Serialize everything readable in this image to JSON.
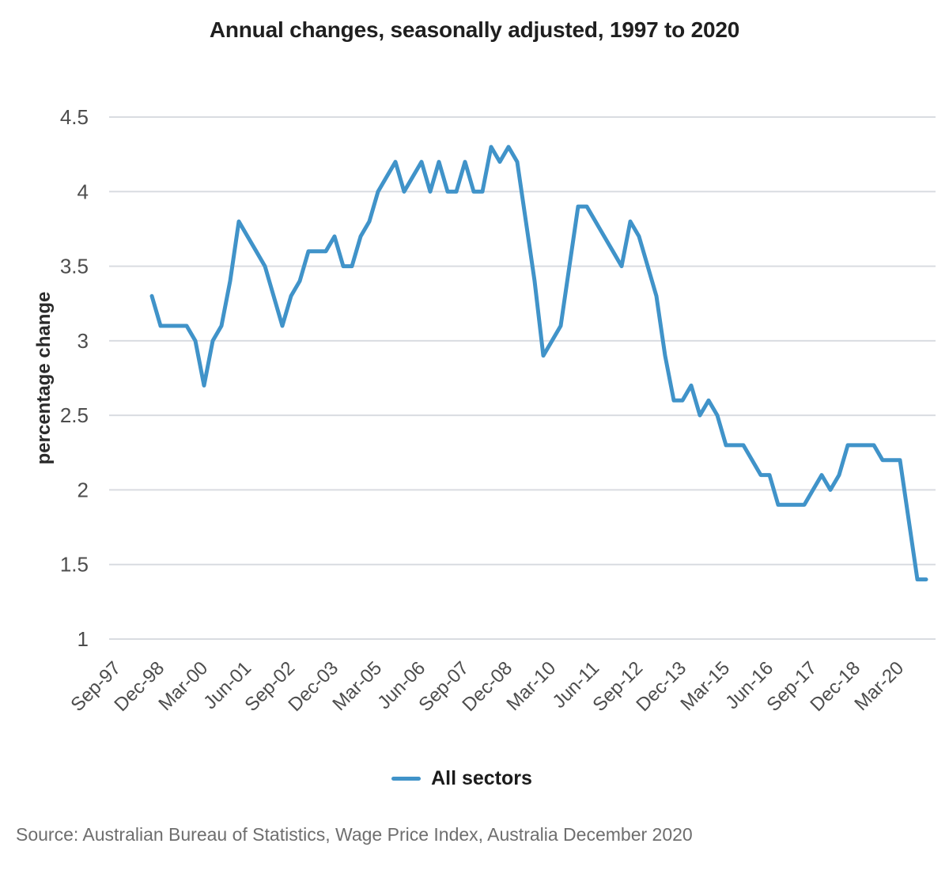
{
  "title": "Annual changes, seasonally adjusted, 1997 to 2020",
  "legend": {
    "label": "All sectors",
    "color": "#4093C9"
  },
  "source": "Source: Australian Bureau of Statistics, Wage Price Index, Australia December 2020",
  "colors": {
    "line": "#4093C9",
    "gridline": "#D9DCE1",
    "tick_label": "#4D4D4D"
  },
  "chart_data": {
    "type": "line",
    "title": "Annual changes, seasonally adjusted, 1997 to 2020",
    "xlabel": "",
    "ylabel": "percentage change",
    "ylim": [
      1,
      4.5
    ],
    "grid": "horizontal",
    "legend_position": "bottom",
    "y_ticks": [
      4.5,
      4,
      3.5,
      3,
      2.5,
      2,
      1.5,
      1
    ],
    "y_tick_labels": [
      "4.5",
      "4",
      "3.5",
      "3",
      "2.5",
      "2",
      "1.5",
      "1"
    ],
    "x_axis_start": "Sep-97",
    "x_frequency": "quarterly",
    "x_ticks": [
      {
        "label": "Sep-97",
        "index": 0
      },
      {
        "label": "Dec-98",
        "index": 5
      },
      {
        "label": "Mar-00",
        "index": 10
      },
      {
        "label": "Jun-01",
        "index": 15
      },
      {
        "label": "Sep-02",
        "index": 20
      },
      {
        "label": "Dec-03",
        "index": 25
      },
      {
        "label": "Mar-05",
        "index": 30
      },
      {
        "label": "Jun-06",
        "index": 35
      },
      {
        "label": "Sep-07",
        "index": 40
      },
      {
        "label": "Dec-08",
        "index": 45
      },
      {
        "label": "Mar-10",
        "index": 50
      },
      {
        "label": "Jun-11",
        "index": 55
      },
      {
        "label": "Sep-12",
        "index": 60
      },
      {
        "label": "Dec-13",
        "index": 65
      },
      {
        "label": "Mar-15",
        "index": 70
      },
      {
        "label": "Jun-16",
        "index": 75
      },
      {
        "label": "Sep-17",
        "index": 80
      },
      {
        "label": "Dec-18",
        "index": 85
      },
      {
        "label": "Mar-20",
        "index": 90
      }
    ],
    "series": [
      {
        "name": "All sectors",
        "color": "#4093C9",
        "first_point": "Sep-98",
        "last_point": "Dec-20",
        "start_index": 4,
        "values": [
          3.3,
          3.1,
          3.1,
          3.1,
          3.1,
          3.0,
          2.7,
          3.0,
          3.1,
          3.4,
          3.8,
          3.7,
          3.6,
          3.5,
          3.3,
          3.1,
          3.3,
          3.4,
          3.6,
          3.6,
          3.6,
          3.7,
          3.5,
          3.5,
          3.7,
          3.8,
          4.0,
          4.1,
          4.2,
          4.0,
          4.1,
          4.2,
          4.0,
          4.2,
          4.0,
          4.0,
          4.2,
          4.0,
          4.0,
          4.3,
          4.2,
          4.3,
          4.2,
          3.8,
          3.4,
          2.9,
          3.0,
          3.1,
          3.5,
          3.9,
          3.9,
          3.8,
          3.7,
          3.6,
          3.5,
          3.8,
          3.7,
          3.5,
          3.3,
          2.9,
          2.6,
          2.6,
          2.7,
          2.5,
          2.6,
          2.5,
          2.3,
          2.3,
          2.3,
          2.2,
          2.1,
          2.1,
          1.9,
          1.9,
          1.9,
          1.9,
          2.0,
          2.1,
          2.0,
          2.1,
          2.3,
          2.3,
          2.3,
          2.3,
          2.2,
          2.2,
          2.2,
          1.8,
          1.4,
          1.4
        ]
      }
    ]
  }
}
